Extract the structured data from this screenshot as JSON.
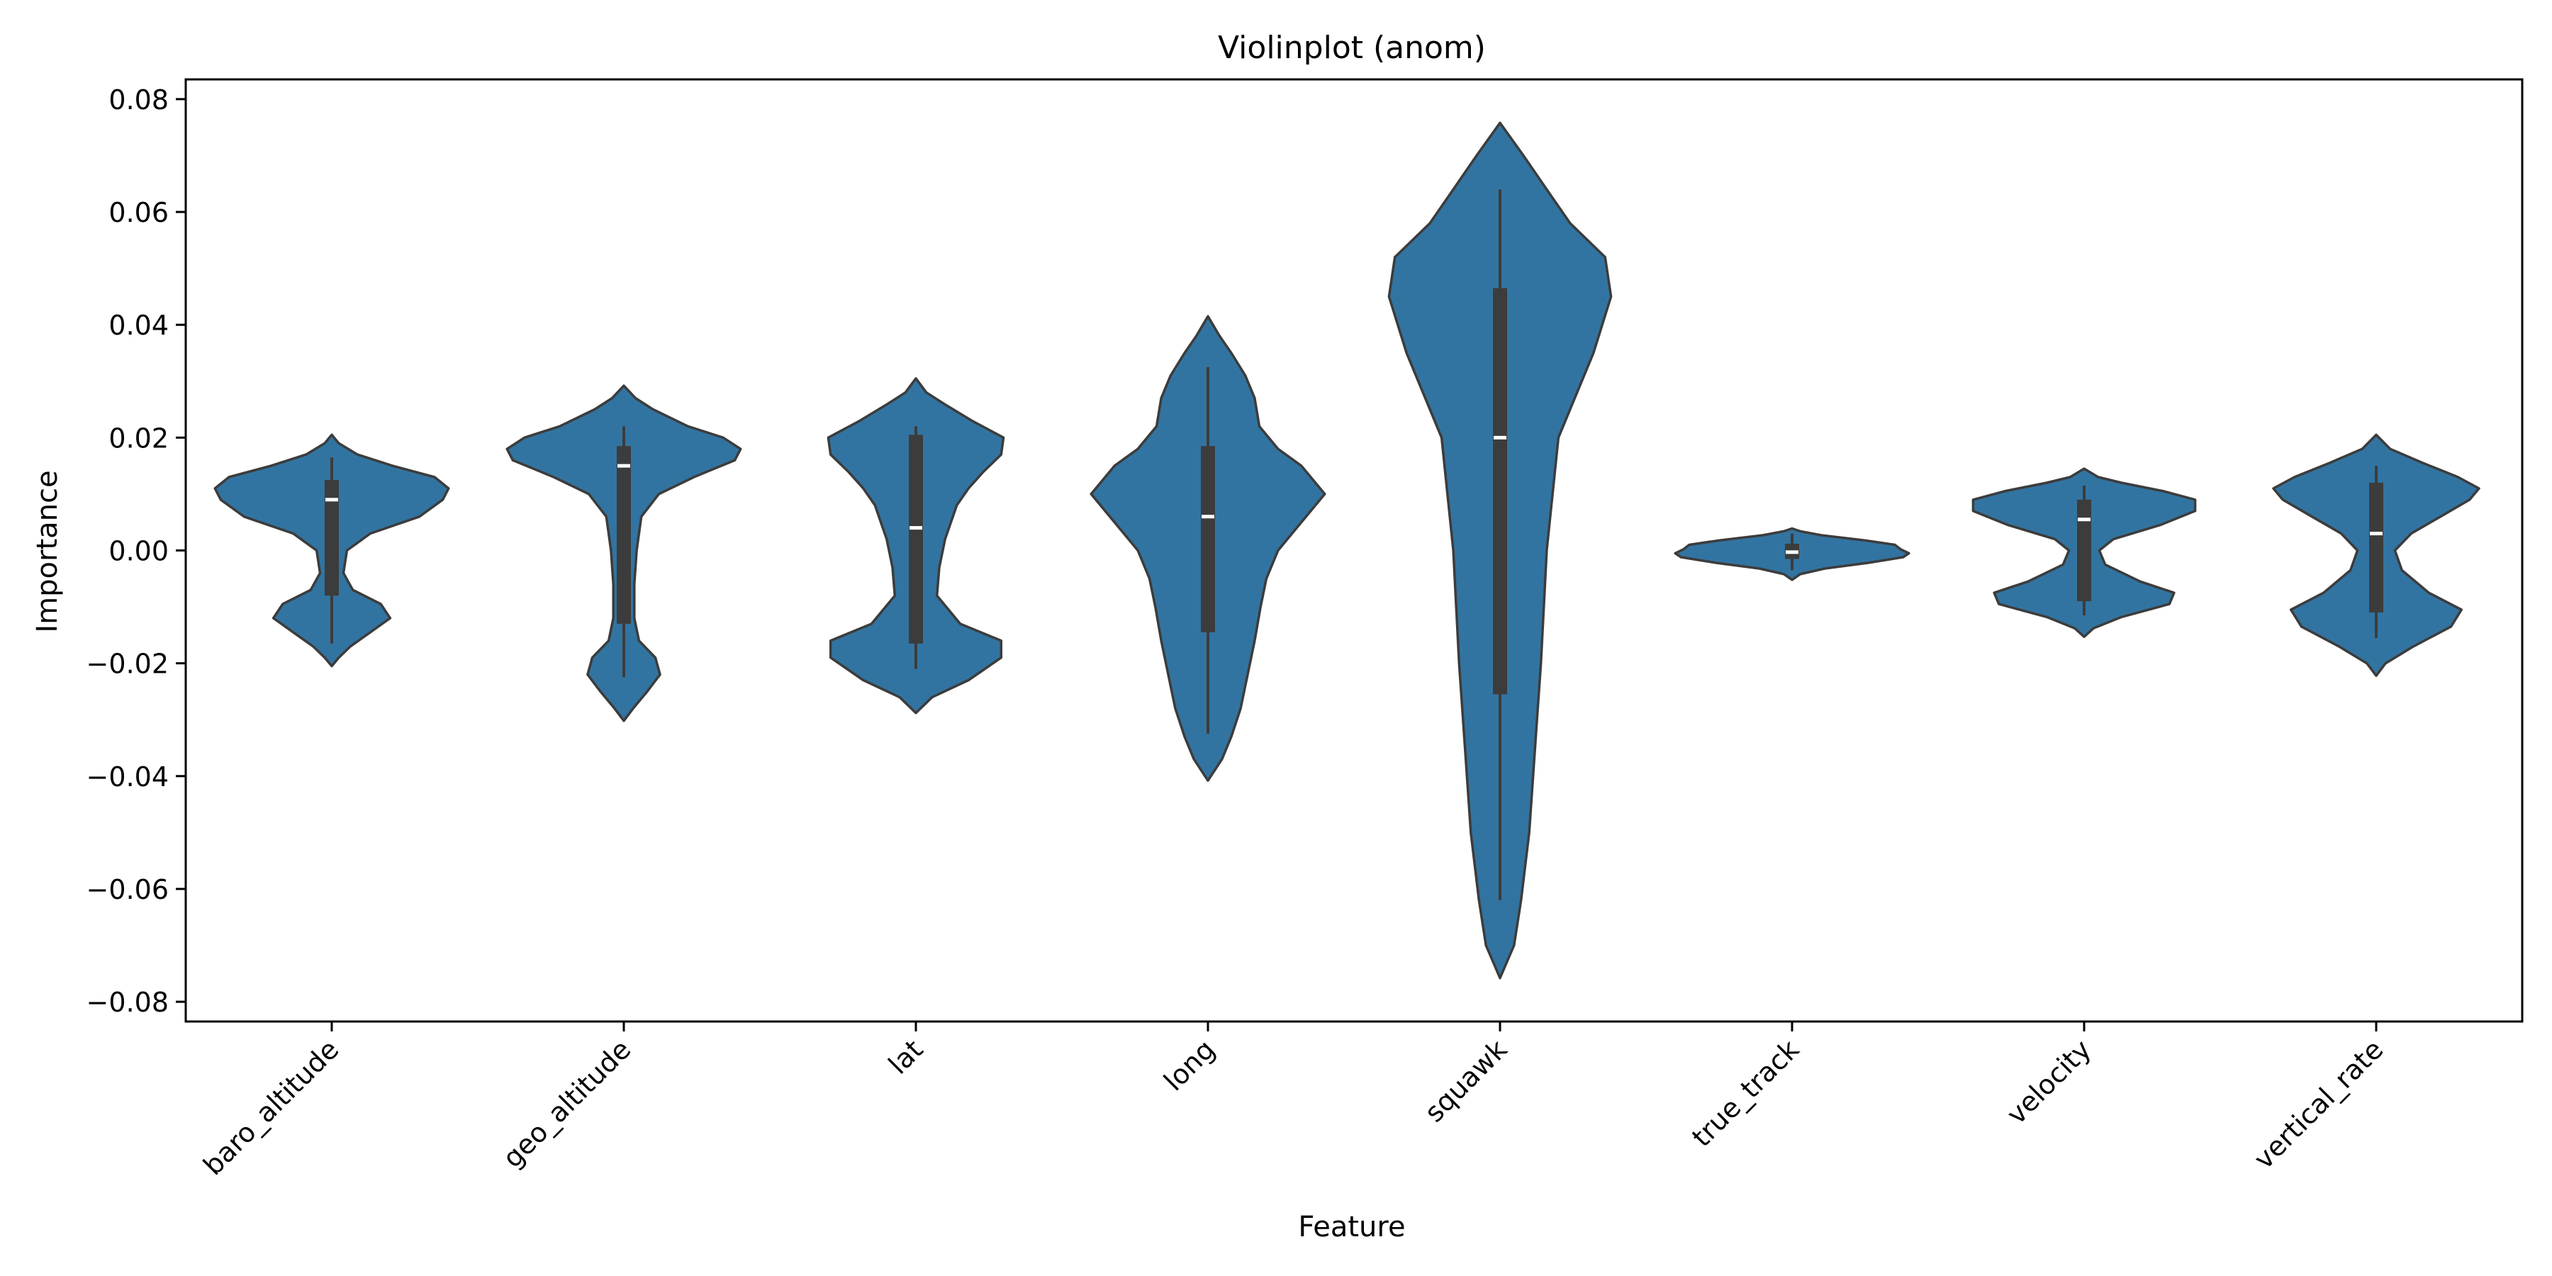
{
  "chart_data": {
    "type": "violin",
    "title": "Violinplot (anom)",
    "xlabel": "Feature",
    "ylabel": "Importance",
    "ylim": [
      -0.0835,
      0.0835
    ],
    "yticks": [
      -0.08,
      -0.06,
      -0.04,
      -0.02,
      0.0,
      0.02,
      0.04,
      0.06,
      0.08
    ],
    "ytick_labels": [
      "−0.08",
      "−0.06",
      "−0.04",
      "−0.02",
      "0.00",
      "0.02",
      "0.04",
      "0.06",
      "0.08"
    ],
    "categories": [
      "baro_altitude",
      "geo_altitude",
      "lat",
      "long",
      "squawk",
      "true_track",
      "velocity",
      "vertical_rate"
    ],
    "grid": false,
    "color": "#3274a1",
    "edge_color": "#3c3c3c",
    "violins": [
      {
        "name": "baro_altitude",
        "min": -0.0165,
        "max": 0.0165,
        "q1": -0.008,
        "median": 0.009,
        "q3": 0.0125,
        "shape": [
          [
            -0.0205,
            0
          ],
          [
            -0.019,
            0.06
          ],
          [
            -0.017,
            0.16
          ],
          [
            -0.0145,
            0.33
          ],
          [
            -0.012,
            0.5
          ],
          [
            -0.0095,
            0.42
          ],
          [
            -0.007,
            0.18
          ],
          [
            -0.004,
            0.1
          ],
          [
            0.0,
            0.13
          ],
          [
            0.003,
            0.33
          ],
          [
            0.006,
            0.75
          ],
          [
            0.009,
            0.95
          ],
          [
            0.011,
            1.0
          ],
          [
            0.013,
            0.88
          ],
          [
            0.015,
            0.52
          ],
          [
            0.017,
            0.22
          ],
          [
            0.019,
            0.06
          ],
          [
            0.0205,
            0
          ]
        ]
      },
      {
        "name": "geo_altitude",
        "min": -0.0225,
        "max": 0.022,
        "q1": -0.013,
        "median": 0.015,
        "q3": 0.0185,
        "shape": [
          [
            -0.0302,
            0
          ],
          [
            -0.028,
            0.08
          ],
          [
            -0.025,
            0.2
          ],
          [
            -0.022,
            0.31
          ],
          [
            -0.019,
            0.27
          ],
          [
            -0.016,
            0.13
          ],
          [
            -0.012,
            0.09
          ],
          [
            -0.006,
            0.09
          ],
          [
            0.0,
            0.11
          ],
          [
            0.006,
            0.15
          ],
          [
            0.01,
            0.3
          ],
          [
            0.013,
            0.6
          ],
          [
            0.016,
            0.95
          ],
          [
            0.018,
            1.0
          ],
          [
            0.02,
            0.85
          ],
          [
            0.022,
            0.55
          ],
          [
            0.025,
            0.25
          ],
          [
            0.027,
            0.1
          ],
          [
            0.0292,
            0
          ]
        ]
      },
      {
        "name": "lat",
        "min": -0.021,
        "max": 0.022,
        "q1": -0.0165,
        "median": 0.004,
        "q3": 0.0205,
        "shape": [
          [
            -0.0288,
            0
          ],
          [
            -0.026,
            0.14
          ],
          [
            -0.023,
            0.45
          ],
          [
            -0.019,
            0.73
          ],
          [
            -0.016,
            0.73
          ],
          [
            -0.013,
            0.38
          ],
          [
            -0.008,
            0.18
          ],
          [
            -0.003,
            0.2
          ],
          [
            0.002,
            0.25
          ],
          [
            0.008,
            0.35
          ],
          [
            0.011,
            0.45
          ],
          [
            0.014,
            0.58
          ],
          [
            0.017,
            0.73
          ],
          [
            0.02,
            0.75
          ],
          [
            0.023,
            0.48
          ],
          [
            0.026,
            0.24
          ],
          [
            0.028,
            0.09
          ],
          [
            0.0305,
            0
          ]
        ]
      },
      {
        "name": "long",
        "min": -0.0325,
        "max": 0.0325,
        "q1": -0.0145,
        "median": 0.006,
        "q3": 0.0185,
        "shape": [
          [
            -0.0408,
            0
          ],
          [
            -0.037,
            0.12
          ],
          [
            -0.033,
            0.2
          ],
          [
            -0.028,
            0.28
          ],
          [
            -0.02,
            0.36
          ],
          [
            -0.016,
            0.4
          ],
          [
            -0.01,
            0.45
          ],
          [
            -0.005,
            0.5
          ],
          [
            0.0,
            0.6
          ],
          [
            0.005,
            0.8
          ],
          [
            0.01,
            1.0
          ],
          [
            0.015,
            0.8
          ],
          [
            0.018,
            0.6
          ],
          [
            0.022,
            0.44
          ],
          [
            0.027,
            0.4
          ],
          [
            0.031,
            0.32
          ],
          [
            0.035,
            0.2
          ],
          [
            0.038,
            0.1
          ],
          [
            0.0415,
            0
          ]
        ]
      },
      {
        "name": "squawk",
        "min": -0.062,
        "max": 0.064,
        "q1": -0.0255,
        "median": 0.02,
        "q3": 0.0465,
        "shape": [
          [
            -0.0758,
            0
          ],
          [
            -0.07,
            0.12
          ],
          [
            -0.062,
            0.18
          ],
          [
            -0.05,
            0.25
          ],
          [
            -0.035,
            0.3
          ],
          [
            -0.02,
            0.35
          ],
          [
            0.0,
            0.4
          ],
          [
            0.02,
            0.5
          ],
          [
            0.035,
            0.8
          ],
          [
            0.045,
            0.95
          ],
          [
            0.052,
            0.9
          ],
          [
            0.058,
            0.6
          ],
          [
            0.064,
            0.4
          ],
          [
            0.07,
            0.2
          ],
          [
            0.0758,
            0
          ]
        ]
      },
      {
        "name": "true_track",
        "min": -0.0035,
        "max": 0.003,
        "q1": -0.0015,
        "median": -0.0003,
        "q3": 0.0012,
        "shape": [
          [
            -0.0052,
            0
          ],
          [
            -0.0042,
            0.07
          ],
          [
            -0.0032,
            0.28
          ],
          [
            -0.0022,
            0.65
          ],
          [
            -0.0012,
            0.95
          ],
          [
            -0.0005,
            1.0
          ],
          [
            0.0002,
            0.93
          ],
          [
            0.001,
            0.88
          ],
          [
            0.0018,
            0.62
          ],
          [
            0.0027,
            0.25
          ],
          [
            0.0034,
            0.07
          ],
          [
            0.0039,
            0
          ]
        ]
      },
      {
        "name": "velocity",
        "min": -0.0115,
        "max": 0.0115,
        "q1": -0.009,
        "median": 0.0055,
        "q3": 0.009,
        "shape": [
          [
            -0.0153,
            0
          ],
          [
            -0.0138,
            0.08
          ],
          [
            -0.0118,
            0.32
          ],
          [
            -0.0095,
            0.73
          ],
          [
            -0.0075,
            0.77
          ],
          [
            -0.0055,
            0.48
          ],
          [
            -0.0025,
            0.18
          ],
          [
            0.0,
            0.13
          ],
          [
            0.002,
            0.25
          ],
          [
            0.0045,
            0.65
          ],
          [
            0.007,
            0.95
          ],
          [
            0.009,
            0.95
          ],
          [
            0.0105,
            0.68
          ],
          [
            0.012,
            0.32
          ],
          [
            0.013,
            0.12
          ],
          [
            0.0145,
            0
          ]
        ]
      },
      {
        "name": "vertical_rate",
        "min": -0.0155,
        "max": 0.015,
        "q1": -0.011,
        "median": 0.003,
        "q3": 0.012,
        "shape": [
          [
            -0.0222,
            0
          ],
          [
            -0.02,
            0.08
          ],
          [
            -0.017,
            0.32
          ],
          [
            -0.0135,
            0.64
          ],
          [
            -0.0105,
            0.73
          ],
          [
            -0.0075,
            0.45
          ],
          [
            -0.0035,
            0.22
          ],
          [
            0.0,
            0.16
          ],
          [
            0.003,
            0.3
          ],
          [
            0.006,
            0.55
          ],
          [
            0.009,
            0.8
          ],
          [
            0.011,
            0.88
          ],
          [
            0.013,
            0.7
          ],
          [
            0.0155,
            0.4
          ],
          [
            0.018,
            0.12
          ],
          [
            0.0205,
            0
          ]
        ]
      }
    ]
  }
}
